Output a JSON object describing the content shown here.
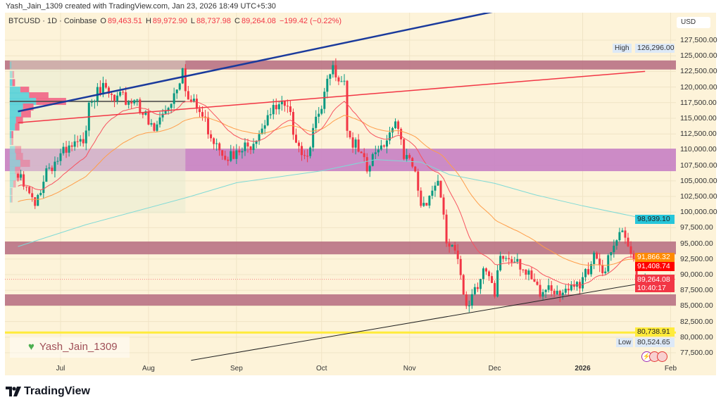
{
  "header": {
    "credit": "Yash_Jain_1309 created with TradingView.com, Jan 23, 2026 18:49 UTC+5:30"
  },
  "legend": {
    "symbol": "BTCUSD · 1D · Coinbase",
    "o_label": "O",
    "o": "89,463.51",
    "h_label": "H",
    "h": "89,972.90",
    "l_label": "L",
    "l": "88,737.98",
    "c_label": "C",
    "c": "89,264.08",
    "change": "−199.42 (−0.22%)"
  },
  "axis": {
    "currency": "USD"
  },
  "badges": {
    "high_label": "High",
    "high": "126,296.00",
    "sma200": "98,939.10",
    "ema_slow": "91,866.32",
    "ema_fast": "91,408.74",
    "last": "89,264.08",
    "countdown": "10:40:17",
    "support": "80,738.91",
    "low_label": "Low",
    "low": "80,524.65"
  },
  "watermark": {
    "icon": "green-heart-icon",
    "text": "Yash_Jain_1309"
  },
  "footer": {
    "logo": "TradingView"
  },
  "colors": {
    "up": "#089981",
    "down": "#f23645",
    "ema_fast": "#f7525f",
    "ema_slow": "#ff9e4a",
    "sma200": "#7fdad6",
    "zone_maroon": "#b76e82",
    "zone_purple": "#c77fc3",
    "support": "#ffeb3b",
    "blue_trend": "#1a3a9c",
    "red_trend": "#f23645",
    "black_trend": "#222222",
    "background": "#fdf3d9"
  },
  "chart_data": {
    "type": "candlestick",
    "symbol": "BTCUSD",
    "interval": "1D",
    "exchange": "Coinbase",
    "ylim": [
      76000,
      131000
    ],
    "xlim": [
      "2025-06-16",
      "2026-02-03"
    ],
    "y_ticks": [
      "127,500.00",
      "125,000.00",
      "122,500.00",
      "120,000.00",
      "117,500.00",
      "115,000.00",
      "112,500.00",
      "110,000.00",
      "107,500.00",
      "105,000.00",
      "102,500.00",
      "100,000.00",
      "97,500.00",
      "95,000.00",
      "92,500.00",
      "90,000.00",
      "87,500.00",
      "85,000.00",
      "82,500.00",
      "80,000.00",
      "77,500.00"
    ],
    "x_ticks": [
      {
        "label": "Jul",
        "date": "2025-07-01"
      },
      {
        "label": "Aug",
        "date": "2025-08-01"
      },
      {
        "label": "Sep",
        "date": "2025-09-01"
      },
      {
        "label": "Oct",
        "date": "2025-10-01"
      },
      {
        "label": "Nov",
        "date": "2025-11-01"
      },
      {
        "label": "Dec",
        "date": "2025-12-01"
      },
      {
        "label": "2026",
        "date": "2026-01-01"
      },
      {
        "label": "Feb",
        "date": "2026-02-01"
      }
    ],
    "approx_closes": [
      [
        "2025-06-16",
        105500
      ],
      [
        "2025-06-22",
        101000
      ],
      [
        "2025-06-26",
        107000
      ],
      [
        "2025-07-03",
        109500
      ],
      [
        "2025-07-09",
        111000
      ],
      [
        "2025-07-11",
        117500
      ],
      [
        "2025-07-14",
        120000
      ],
      [
        "2025-07-20",
        117800
      ],
      [
        "2025-07-28",
        118000
      ],
      [
        "2025-08-01",
        114000
      ],
      [
        "2025-08-03",
        113000
      ],
      [
        "2025-08-10",
        119000
      ],
      [
        "2025-08-13",
        123000
      ],
      [
        "2025-08-15",
        118000
      ],
      [
        "2025-08-19",
        116000
      ],
      [
        "2025-08-25",
        111000
      ],
      [
        "2025-08-31",
        108500
      ],
      [
        "2025-09-05",
        110500
      ],
      [
        "2025-09-12",
        115500
      ],
      [
        "2025-09-18",
        117000
      ],
      [
        "2025-09-25",
        109000
      ],
      [
        "2025-10-01",
        116500
      ],
      [
        "2025-10-05",
        123500
      ],
      [
        "2025-10-09",
        121000
      ],
      [
        "2025-10-10",
        113000
      ],
      [
        "2025-10-17",
        106500
      ],
      [
        "2025-10-21",
        110000
      ],
      [
        "2025-10-27",
        114500
      ],
      [
        "2025-10-30",
        108500
      ],
      [
        "2025-11-03",
        106500
      ],
      [
        "2025-11-05",
        101000
      ],
      [
        "2025-11-11",
        105000
      ],
      [
        "2025-11-14",
        95000
      ],
      [
        "2025-11-18",
        92500
      ],
      [
        "2025-11-21",
        85000
      ],
      [
        "2025-11-24",
        88000
      ],
      [
        "2025-11-27",
        91000
      ],
      [
        "2025-12-01",
        86500
      ],
      [
        "2025-12-03",
        93000
      ],
      [
        "2025-12-09",
        92500
      ],
      [
        "2025-12-12",
        90000
      ],
      [
        "2025-12-17",
        86500
      ],
      [
        "2025-12-20",
        88300
      ],
      [
        "2025-12-27",
        87500
      ],
      [
        "2025-12-31",
        87800
      ],
      [
        "2026-01-05",
        93500
      ],
      [
        "2026-01-09",
        90500
      ],
      [
        "2026-01-13",
        95500
      ],
      [
        "2026-01-14",
        96800
      ],
      [
        "2026-01-19",
        92500
      ],
      [
        "2026-01-20",
        89000
      ],
      [
        "2026-01-23",
        89264.08
      ]
    ],
    "sma200_approx": [
      [
        "2025-06-16",
        94500
      ],
      [
        "2025-07-10",
        98000
      ],
      [
        "2025-08-15",
        102400
      ],
      [
        "2025-09-01",
        104700
      ],
      [
        "2025-10-01",
        106600
      ],
      [
        "2025-10-20",
        108400
      ],
      [
        "2025-11-05",
        108000
      ],
      [
        "2025-11-15",
        106000
      ],
      [
        "2025-12-01",
        104600
      ],
      [
        "2025-12-15",
        102800
      ],
      [
        "2026-01-01",
        101000
      ],
      [
        "2026-01-23",
        98939.1
      ]
    ],
    "ema_fast_last": 91408.74,
    "ema_slow_last": 91866.32,
    "zones": [
      {
        "kind": "resistance",
        "from": 122800,
        "to": 124250
      },
      {
        "kind": "range",
        "from": 106550,
        "to": 110150
      },
      {
        "kind": "resistance",
        "from": 93250,
        "to": 95300
      },
      {
        "kind": "support",
        "from": 85050,
        "to": 86850
      }
    ],
    "horizontal_lines": [
      {
        "price": 80738.91,
        "color": "yellow"
      },
      {
        "price": 89264.08,
        "style": "dotted",
        "role": "last-price"
      }
    ],
    "trendlines": [
      {
        "color": "blue",
        "from": [
          "2025-06-16",
          116100
        ],
        "to": [
          "2025-12-01",
          132100
        ]
      },
      {
        "color": "red",
        "from": [
          "2025-06-16",
          114300
        ],
        "to": [
          "2026-01-23",
          122500
        ]
      },
      {
        "color": "black",
        "from": [
          "2025-08-16",
          76300
        ],
        "to": [
          "2026-01-23",
          88700
        ]
      }
    ],
    "volume_profile": {
      "from": "2025-06-26",
      "to": "2025-08-14",
      "poc": 117700,
      "rows": [
        {
          "price": 123500,
          "up": 2,
          "down": 0
        },
        {
          "price": 122000,
          "up": 3,
          "down": 2
        },
        {
          "price": 120700,
          "up": 3,
          "down": 3
        },
        {
          "price": 119500,
          "up": 12,
          "down": 10
        },
        {
          "price": 118600,
          "up": 22,
          "down": 22
        },
        {
          "price": 117700,
          "up": 30,
          "down": 34
        },
        {
          "price": 116800,
          "up": 15,
          "down": 12
        },
        {
          "price": 115700,
          "up": 13,
          "down": 11
        },
        {
          "price": 114700,
          "up": 7,
          "down": 8
        },
        {
          "price": 113600,
          "up": 6,
          "down": 5
        },
        {
          "price": 112400,
          "up": 2,
          "down": 2
        },
        {
          "price": 111300,
          "up": 2,
          "down": 2
        },
        {
          "price": 110000,
          "up": 6,
          "down": 7
        },
        {
          "price": 108900,
          "up": 7,
          "down": 8
        },
        {
          "price": 107800,
          "up": 12,
          "down": 11
        },
        {
          "price": 106700,
          "up": 6,
          "down": 6
        },
        {
          "price": 105600,
          "up": 7,
          "down": 7
        },
        {
          "price": 104500,
          "up": 4,
          "down": 3
        },
        {
          "price": 103300,
          "up": 2,
          "down": 1
        },
        {
          "price": 102100,
          "up": 2,
          "down": 1
        }
      ]
    }
  }
}
